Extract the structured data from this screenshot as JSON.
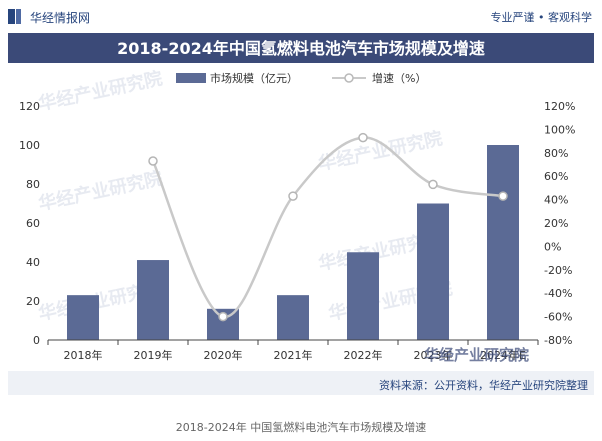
{
  "header": {
    "brand": "华经情报网",
    "slogan": "专业严谨 • 客观科学"
  },
  "source_note": "资料来源：公开资料，华经产业研究院整理",
  "caption": "2018-2024年 中国氢燃料电池汽车市场规模及增速",
  "watermarks": [
    "华经产业研究院",
    "华经产业研究院",
    "华经产业研究院",
    "华经产业研究院",
    "华经产业研究院",
    "华经产业研究院"
  ],
  "footer_brand": "华经产业研究院",
  "chart_data": {
    "type": "bar",
    "title": "2018-2024年中国氢燃料电池汽车市场规模及增速",
    "categories": [
      "2018年",
      "2019年",
      "2020年",
      "2021年",
      "2022年",
      "2023年",
      "2024年E"
    ],
    "series": [
      {
        "name": "市场规模（亿元）",
        "type": "bar",
        "axis": "left",
        "values": [
          23,
          41,
          16,
          23,
          45,
          70,
          100
        ]
      },
      {
        "name": "增速（%）",
        "type": "line",
        "axis": "right",
        "values": [
          null,
          73,
          -60,
          43,
          93,
          53,
          43
        ]
      }
    ],
    "y_left": {
      "min": 0,
      "max": 120,
      "ticks": [
        0,
        20,
        40,
        60,
        80,
        100,
        120
      ]
    },
    "y_right": {
      "min": -80,
      "max": 120,
      "ticks": [
        "-80%",
        "-60%",
        "-40%",
        "-20%",
        "0%",
        "20%",
        "40%",
        "60%",
        "80%",
        "100%",
        "120%"
      ]
    },
    "legend_position": "top",
    "colors": {
      "bar": "#5b6a95",
      "line": "#c9c9c9",
      "title_band": "#3b4a78",
      "accent": "#27457d"
    }
  }
}
